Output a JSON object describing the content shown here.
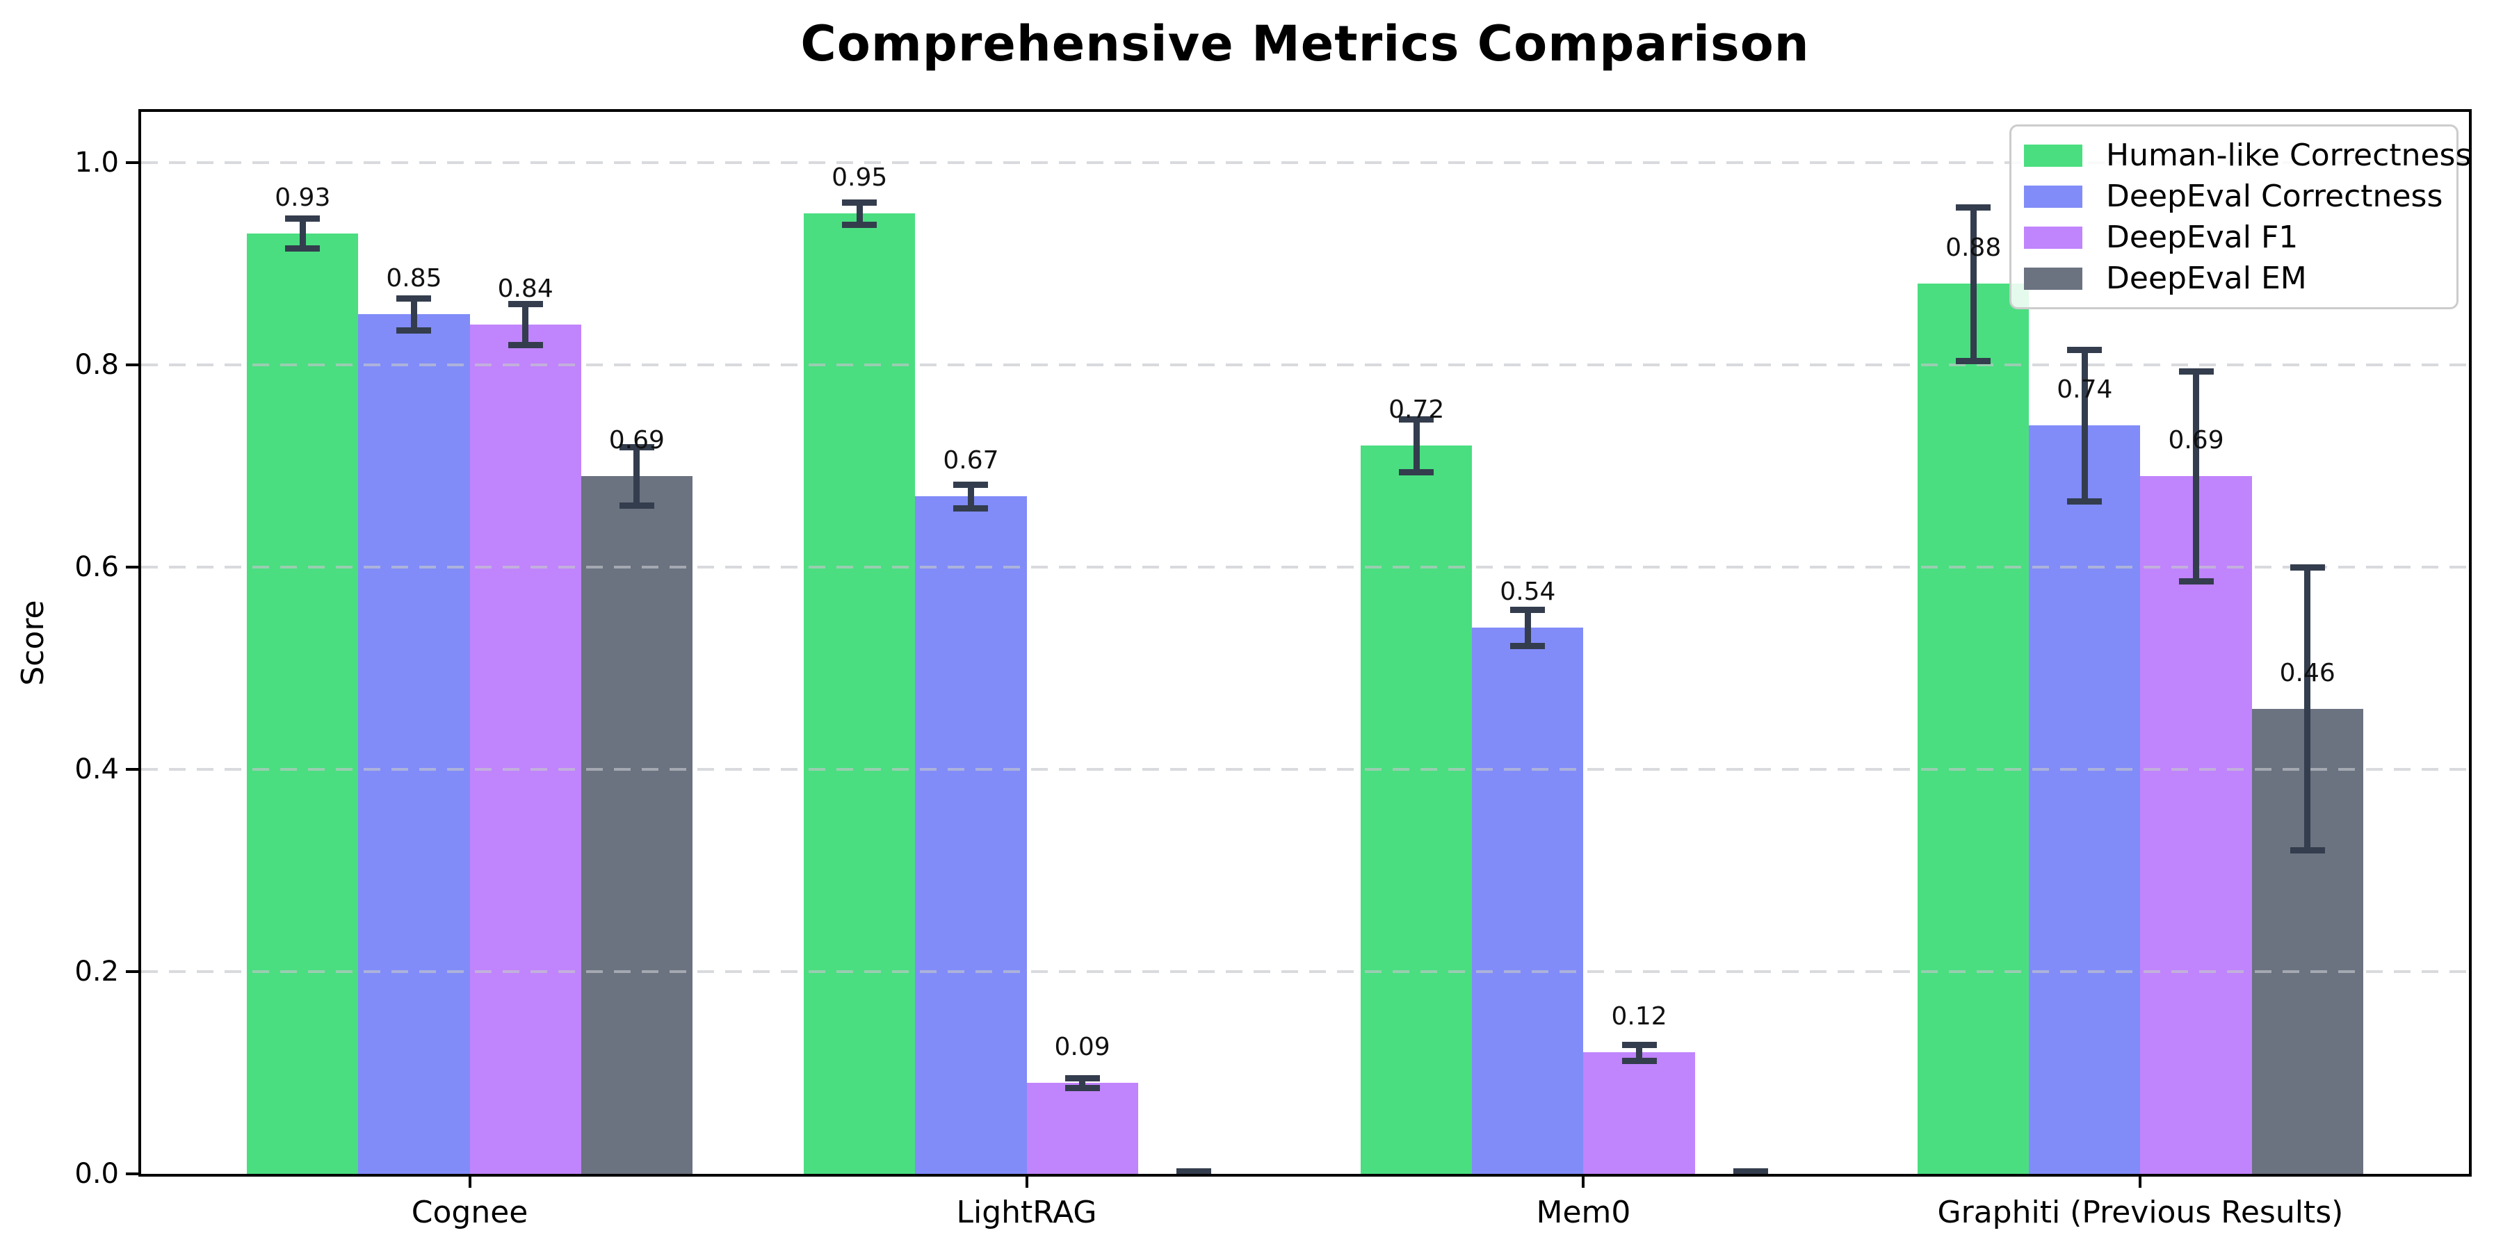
{
  "figure": {
    "title": "Comprehensive Metrics Comparison",
    "background": "#ffffff"
  },
  "chart_data": {
    "type": "bar",
    "title": "Comprehensive Metrics Comparison",
    "categories": [
      "Cognee",
      "LightRAG",
      "Mem0",
      "Graphiti (Previous Results)"
    ],
    "series": [
      {
        "name": "Human-like Correctness",
        "color": "#4ade80",
        "values": [
          0.93,
          0.95,
          0.72,
          0.88
        ],
        "errors": [
          0.015,
          0.011,
          0.026,
          0.076
        ],
        "labels": [
          "0.93",
          "0.95",
          "0.72",
          "0.88"
        ]
      },
      {
        "name": "DeepEval Correctness",
        "color": "#818cf8",
        "values": [
          0.85,
          0.67,
          0.54,
          0.74
        ],
        "errors": [
          0.016,
          0.012,
          0.018,
          0.075
        ],
        "labels": [
          "0.85",
          "0.67",
          "0.54",
          "0.74"
        ]
      },
      {
        "name": "DeepEval F1",
        "color": "#c084fc",
        "values": [
          0.84,
          0.09,
          0.12,
          0.69
        ],
        "errors": [
          0.02,
          0.005,
          0.008,
          0.104
        ],
        "labels": [
          "0.84",
          "0.09",
          "0.12",
          "0.69"
        ]
      },
      {
        "name": "DeepEval EM",
        "color": "#6b7280",
        "values": [
          0.69,
          0.0,
          0.0,
          0.46
        ],
        "errors": [
          0.029,
          0.003,
          0.003,
          0.14
        ],
        "labels": [
          "0.69",
          "",
          "",
          "0.46"
        ]
      }
    ],
    "ylabel": "Score",
    "xlabel": "",
    "ylim": [
      0,
      1.05
    ],
    "yticks": [
      "0.0",
      "0.2",
      "0.4",
      "0.6",
      "0.8",
      "1.0"
    ],
    "grid": {
      "axis": "y",
      "style": "dashed",
      "color": "#c3c6cb"
    },
    "legend_position": "upper right",
    "legend_border_color": "#cccccc",
    "error_bar_color": "#333d4d",
    "spine_color": "#000000",
    "text_color": "#000000"
  }
}
